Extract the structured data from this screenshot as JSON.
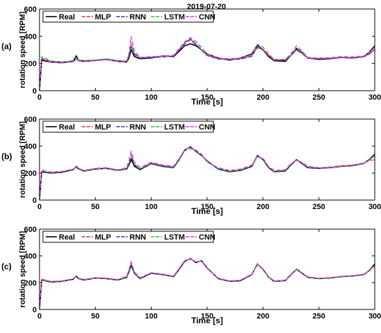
{
  "figure_title": "2019-07-20",
  "colors": {
    "Real": "#000000",
    "MLP": "#ff2a2a",
    "RNN": "#2b2bd0",
    "LSTM": "#1fcf1f",
    "CNN": "#ff1fff"
  },
  "chart_data": [
    {
      "type": "line",
      "panel_label": "(a)",
      "xlabel": "Time [s]",
      "ylabel": "rotation speed [RPM]",
      "xlim": [
        0,
        300
      ],
      "ylim": [
        0,
        600
      ],
      "xticks": [
        0,
        50,
        100,
        150,
        200,
        250,
        300
      ],
      "yticks": [
        0,
        200,
        400,
        600
      ],
      "grid": false,
      "legend_position": "top-left",
      "x": [
        0,
        2,
        5,
        10,
        20,
        30,
        33,
        35,
        40,
        50,
        60,
        70,
        78,
        80,
        82,
        85,
        90,
        100,
        110,
        120,
        125,
        130,
        135,
        140,
        145,
        150,
        160,
        170,
        180,
        190,
        195,
        200,
        205,
        210,
        220,
        225,
        230,
        235,
        240,
        250,
        260,
        270,
        280,
        290,
        295,
        300
      ],
      "series": [
        {
          "name": "Real",
          "values": [
            0,
            225,
            218,
            210,
            205,
            215,
            255,
            220,
            215,
            222,
            230,
            215,
            210,
            240,
            300,
            250,
            235,
            240,
            255,
            250,
            290,
            330,
            345,
            330,
            300,
            270,
            240,
            225,
            240,
            270,
            335,
            300,
            250,
            220,
            215,
            260,
            310,
            280,
            240,
            230,
            235,
            245,
            240,
            250,
            280,
            330
          ]
        },
        {
          "name": "MLP",
          "values": [
            0,
            240,
            230,
            215,
            210,
            218,
            230,
            225,
            220,
            225,
            232,
            220,
            215,
            260,
            340,
            270,
            240,
            245,
            250,
            255,
            300,
            350,
            380,
            340,
            300,
            260,
            235,
            230,
            235,
            255,
            320,
            300,
            260,
            225,
            225,
            260,
            300,
            275,
            240,
            235,
            238,
            245,
            242,
            250,
            270,
            300
          ]
        },
        {
          "name": "RNN",
          "values": [
            0,
            235,
            228,
            212,
            208,
            215,
            232,
            222,
            218,
            224,
            230,
            218,
            212,
            255,
            330,
            265,
            238,
            242,
            248,
            252,
            295,
            345,
            375,
            335,
            298,
            258,
            232,
            228,
            232,
            252,
            318,
            298,
            258,
            222,
            222,
            258,
            298,
            272,
            238,
            232,
            236,
            243,
            240,
            248,
            268,
            305
          ]
        },
        {
          "name": "LSTM",
          "values": [
            0,
            250,
            240,
            220,
            212,
            220,
            235,
            228,
            222,
            226,
            234,
            222,
            218,
            265,
            345,
            275,
            242,
            248,
            252,
            258,
            305,
            355,
            385,
            345,
            305,
            265,
            238,
            232,
            238,
            258,
            325,
            305,
            262,
            228,
            228,
            262,
            305,
            278,
            242,
            238,
            240,
            248,
            245,
            252,
            275,
            310
          ]
        },
        {
          "name": "CNN",
          "values": [
            0,
            230,
            225,
            210,
            205,
            212,
            228,
            220,
            215,
            220,
            228,
            215,
            210,
            270,
            400,
            290,
            245,
            250,
            255,
            260,
            310,
            360,
            390,
            360,
            320,
            270,
            240,
            235,
            240,
            265,
            340,
            320,
            270,
            230,
            230,
            270,
            330,
            290,
            245,
            240,
            242,
            250,
            248,
            255,
            280,
            300
          ]
        }
      ]
    },
    {
      "type": "line",
      "panel_label": "(b)",
      "xlabel": "Time [s]",
      "ylabel": "rotation speed [RPM]",
      "xlim": [
        0,
        300
      ],
      "ylim": [
        0,
        600
      ],
      "xticks": [
        0,
        50,
        100,
        150,
        200,
        250,
        300
      ],
      "yticks": [
        0,
        200,
        400,
        600
      ],
      "grid": false,
      "legend_position": "top-left",
      "x": [
        0,
        2,
        5,
        10,
        20,
        30,
        33,
        35,
        40,
        50,
        60,
        70,
        78,
        80,
        82,
        85,
        90,
        100,
        110,
        120,
        125,
        130,
        135,
        140,
        145,
        150,
        160,
        170,
        180,
        190,
        195,
        200,
        205,
        210,
        220,
        225,
        230,
        235,
        240,
        250,
        260,
        270,
        280,
        290,
        295,
        300
      ],
      "series": [
        {
          "name": "Real",
          "values": [
            0,
            210,
            205,
            200,
            205,
            225,
            250,
            230,
            215,
            230,
            235,
            220,
            230,
            260,
            300,
            250,
            225,
            270,
            250,
            240,
            300,
            370,
            395,
            360,
            330,
            290,
            230,
            210,
            220,
            250,
            330,
            300,
            240,
            210,
            215,
            260,
            300,
            270,
            240,
            235,
            240,
            250,
            255,
            270,
            300,
            340
          ]
        },
        {
          "name": "MLP",
          "values": [
            0,
            220,
            212,
            205,
            210,
            228,
            245,
            232,
            218,
            232,
            238,
            222,
            235,
            280,
            340,
            265,
            232,
            275,
            255,
            245,
            305,
            375,
            390,
            365,
            335,
            285,
            235,
            215,
            225,
            255,
            325,
            305,
            245,
            215,
            220,
            265,
            300,
            275,
            245,
            238,
            242,
            252,
            258,
            272,
            295,
            320
          ]
        },
        {
          "name": "RNN",
          "values": [
            0,
            215,
            208,
            202,
            208,
            226,
            248,
            230,
            216,
            230,
            236,
            220,
            232,
            270,
            320,
            258,
            228,
            272,
            252,
            242,
            302,
            372,
            392,
            362,
            332,
            288,
            232,
            212,
            222,
            252,
            328,
            302,
            242,
            212,
            218,
            262,
            302,
            272,
            242,
            236,
            240,
            250,
            256,
            270,
            298,
            335
          ]
        },
        {
          "name": "LSTM",
          "values": [
            0,
            218,
            210,
            204,
            209,
            227,
            246,
            231,
            217,
            231,
            237,
            221,
            233,
            275,
            330,
            262,
            230,
            274,
            254,
            244,
            304,
            374,
            391,
            364,
            334,
            286,
            234,
            214,
            224,
            254,
            326,
            304,
            244,
            214,
            219,
            264,
            301,
            274,
            244,
            237,
            241,
            251,
            257,
            271,
            296,
            330
          ]
        },
        {
          "name": "CNN",
          "values": [
            0,
            225,
            215,
            208,
            212,
            230,
            240,
            235,
            220,
            235,
            240,
            225,
            240,
            290,
            360,
            280,
            240,
            280,
            260,
            250,
            310,
            365,
            380,
            370,
            340,
            280,
            240,
            220,
            230,
            260,
            320,
            310,
            250,
            220,
            225,
            270,
            295,
            280,
            250,
            240,
            245,
            255,
            260,
            275,
            290,
            300
          ]
        }
      ]
    },
    {
      "type": "line",
      "panel_label": "(c)",
      "xlabel": "Time [s]",
      "ylabel": "rotation speed [RPM]",
      "xlim": [
        0,
        300
      ],
      "ylim": [
        0,
        600
      ],
      "xticks": [
        0,
        50,
        100,
        150,
        200,
        250,
        300
      ],
      "yticks": [
        0,
        200,
        400,
        600
      ],
      "grid": false,
      "legend_position": "top-left",
      "x": [
        0,
        2,
        5,
        10,
        20,
        30,
        33,
        35,
        40,
        50,
        60,
        70,
        78,
        80,
        82,
        85,
        90,
        100,
        110,
        120,
        125,
        130,
        135,
        140,
        145,
        150,
        160,
        170,
        180,
        190,
        195,
        200,
        205,
        210,
        220,
        225,
        230,
        235,
        240,
        250,
        260,
        270,
        280,
        290,
        295,
        300
      ],
      "series": [
        {
          "name": "Real",
          "values": [
            0,
            220,
            215,
            205,
            210,
            225,
            250,
            230,
            220,
            235,
            230,
            220,
            240,
            280,
            330,
            270,
            230,
            270,
            260,
            245,
            300,
            360,
            380,
            350,
            365,
            310,
            230,
            210,
            215,
            260,
            340,
            300,
            240,
            210,
            215,
            260,
            300,
            270,
            240,
            230,
            235,
            245,
            250,
            260,
            290,
            340
          ]
        },
        {
          "name": "MLP",
          "values": [
            0,
            225,
            218,
            208,
            212,
            228,
            245,
            232,
            222,
            237,
            232,
            222,
            245,
            290,
            350,
            275,
            235,
            272,
            262,
            248,
            305,
            365,
            378,
            355,
            362,
            308,
            232,
            212,
            218,
            262,
            338,
            302,
            242,
            212,
            218,
            262,
            302,
            272,
            242,
            232,
            237,
            247,
            252,
            262,
            288,
            330
          ]
        },
        {
          "name": "RNN",
          "values": [
            0,
            222,
            216,
            206,
            211,
            226,
            248,
            231,
            221,
            236,
            231,
            221,
            242,
            285,
            340,
            272,
            232,
            271,
            261,
            246,
            302,
            362,
            380,
            352,
            364,
            309,
            231,
            211,
            216,
            261,
            339,
            301,
            241,
            211,
            216,
            261,
            301,
            271,
            241,
            231,
            236,
            246,
            251,
            261,
            289,
            335
          ]
        },
        {
          "name": "LSTM",
          "values": [
            0,
            224,
            217,
            207,
            211,
            227,
            247,
            232,
            221,
            236,
            232,
            221,
            243,
            287,
            345,
            273,
            233,
            272,
            261,
            247,
            304,
            364,
            379,
            354,
            363,
            309,
            231,
            211,
            217,
            262,
            338,
            302,
            241,
            211,
            217,
            262,
            301,
            272,
            241,
            231,
            236,
            246,
            251,
            261,
            289,
            332
          ]
        },
        {
          "name": "CNN",
          "values": [
            0,
            228,
            220,
            210,
            214,
            230,
            242,
            234,
            224,
            238,
            234,
            224,
            248,
            295,
            355,
            280,
            238,
            275,
            265,
            250,
            308,
            366,
            375,
            358,
            360,
            306,
            234,
            214,
            220,
            264,
            335,
            304,
            244,
            214,
            220,
            264,
            304,
            274,
            244,
            234,
            238,
            248,
            253,
            263,
            287,
            325
          ]
        }
      ]
    }
  ]
}
